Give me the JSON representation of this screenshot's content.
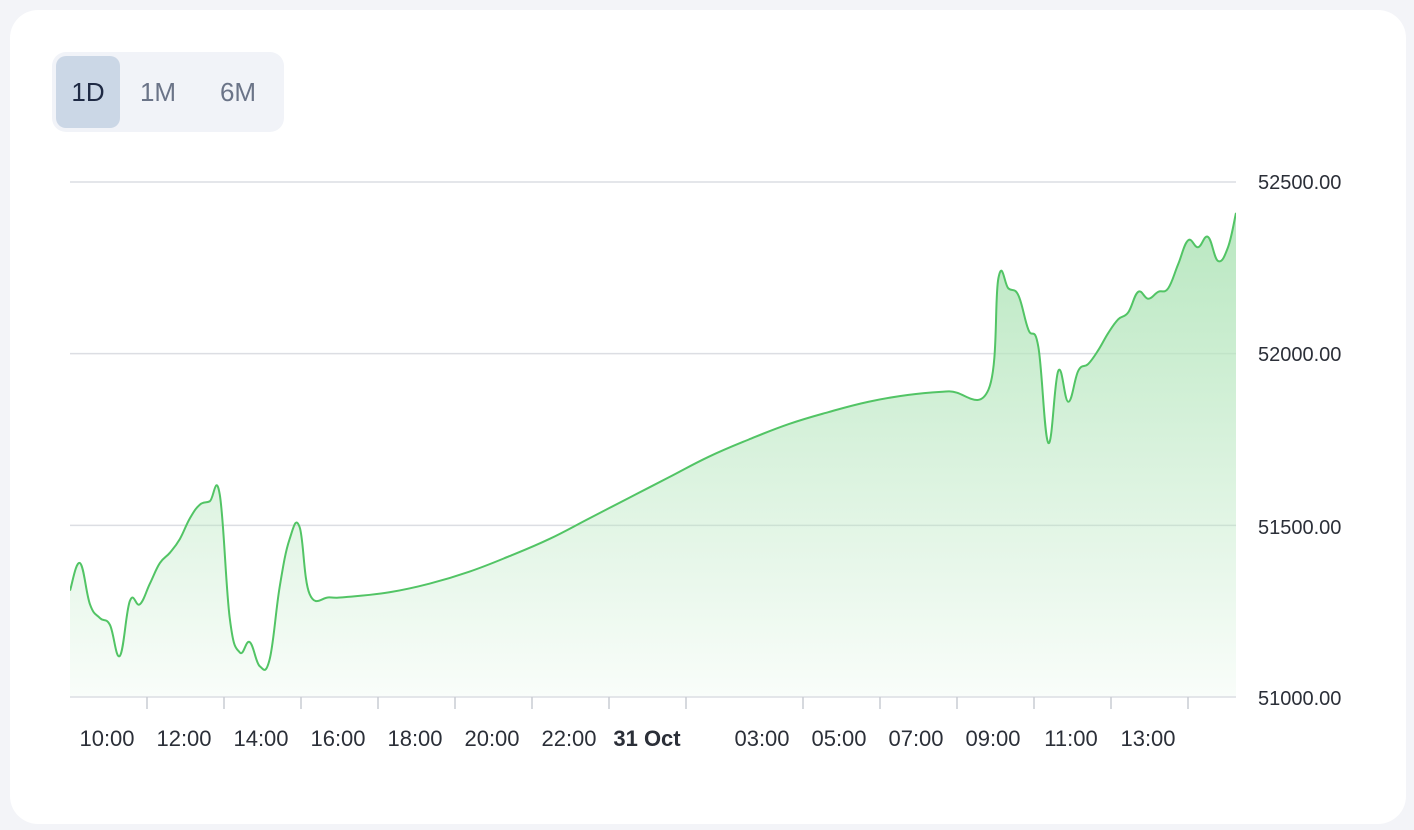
{
  "range_toggle": {
    "options": [
      {
        "label": "1D",
        "active": true
      },
      {
        "label": "1M",
        "active": false
      },
      {
        "label": "6M",
        "active": false
      }
    ]
  },
  "colors": {
    "line": "#52c465",
    "fill": "#b5e6bd",
    "grid": "#dcdee3",
    "active_button": "#cbd7e6"
  },
  "chart_data": {
    "type": "area",
    "title": "",
    "xlabel": "",
    "ylabel": "",
    "ylim": [
      51000,
      52500
    ],
    "y_ticks": [
      "52500.00",
      "52000.00",
      "51500.00",
      "51000.00"
    ],
    "x_tick_labels": [
      {
        "label": "10:00",
        "bold": false
      },
      {
        "label": "12:00",
        "bold": false
      },
      {
        "label": "14:00",
        "bold": false
      },
      {
        "label": "16:00",
        "bold": false
      },
      {
        "label": "18:00",
        "bold": false
      },
      {
        "label": "20:00",
        "bold": false
      },
      {
        "label": "22:00",
        "bold": false
      },
      {
        "label": "31 Oct",
        "bold": true
      },
      {
        "label": "03:00",
        "bold": false
      },
      {
        "label": "05:00",
        "bold": false
      },
      {
        "label": "07:00",
        "bold": false
      },
      {
        "label": "09:00",
        "bold": false
      },
      {
        "label": "11:00",
        "bold": false
      },
      {
        "label": "13:00",
        "bold": false
      }
    ],
    "grid": true,
    "x_unit": "hours",
    "series": [
      {
        "points": [
          [
            9.0,
            51310
          ],
          [
            9.25,
            51390
          ],
          [
            9.5,
            51270
          ],
          [
            9.75,
            51230
          ],
          [
            10.0,
            51210
          ],
          [
            10.25,
            51120
          ],
          [
            10.5,
            51280
          ],
          [
            10.75,
            51270
          ],
          [
            11.0,
            51330
          ],
          [
            11.25,
            51390
          ],
          [
            11.5,
            51420
          ],
          [
            11.75,
            51460
          ],
          [
            12.0,
            51520
          ],
          [
            12.25,
            51560
          ],
          [
            12.5,
            51570
          ],
          [
            12.75,
            51590
          ],
          [
            13.0,
            51230
          ],
          [
            13.25,
            51130
          ],
          [
            13.5,
            51160
          ],
          [
            13.75,
            51090
          ],
          [
            14.0,
            51110
          ],
          [
            14.25,
            51320
          ],
          [
            14.5,
            51460
          ],
          [
            14.75,
            51495
          ],
          [
            15.0,
            51300
          ],
          [
            15.5,
            51290
          ],
          [
            16.0,
            51292
          ],
          [
            17.0,
            51305
          ],
          [
            18.0,
            51330
          ],
          [
            19.0,
            51365
          ],
          [
            20.0,
            51410
          ],
          [
            21.0,
            51460
          ],
          [
            22.0,
            51520
          ],
          [
            23.0,
            51580
          ],
          [
            24.0,
            51640
          ],
          [
            25.0,
            51700
          ],
          [
            26.0,
            51750
          ],
          [
            27.0,
            51795
          ],
          [
            28.0,
            51830
          ],
          [
            29.0,
            51860
          ],
          [
            30.0,
            51880
          ],
          [
            31.0,
            51890
          ],
          [
            32.0,
            51895
          ],
          [
            32.25,
            52220
          ],
          [
            32.5,
            52190
          ],
          [
            32.75,
            52170
          ],
          [
            33.0,
            52070
          ],
          [
            33.25,
            52020
          ],
          [
            33.5,
            51740
          ],
          [
            33.75,
            51950
          ],
          [
            34.0,
            51860
          ],
          [
            34.25,
            51950
          ],
          [
            34.5,
            51970
          ],
          [
            34.75,
            52010
          ],
          [
            35.0,
            52060
          ],
          [
            35.25,
            52100
          ],
          [
            35.5,
            52120
          ],
          [
            35.75,
            52180
          ],
          [
            36.0,
            52160
          ],
          [
            36.25,
            52180
          ],
          [
            36.5,
            52190
          ],
          [
            36.75,
            52260
          ],
          [
            37.0,
            52330
          ],
          [
            37.25,
            52310
          ],
          [
            37.5,
            52340
          ],
          [
            37.75,
            52270
          ],
          [
            38.0,
            52310
          ],
          [
            38.2,
            52410
          ]
        ]
      }
    ]
  }
}
